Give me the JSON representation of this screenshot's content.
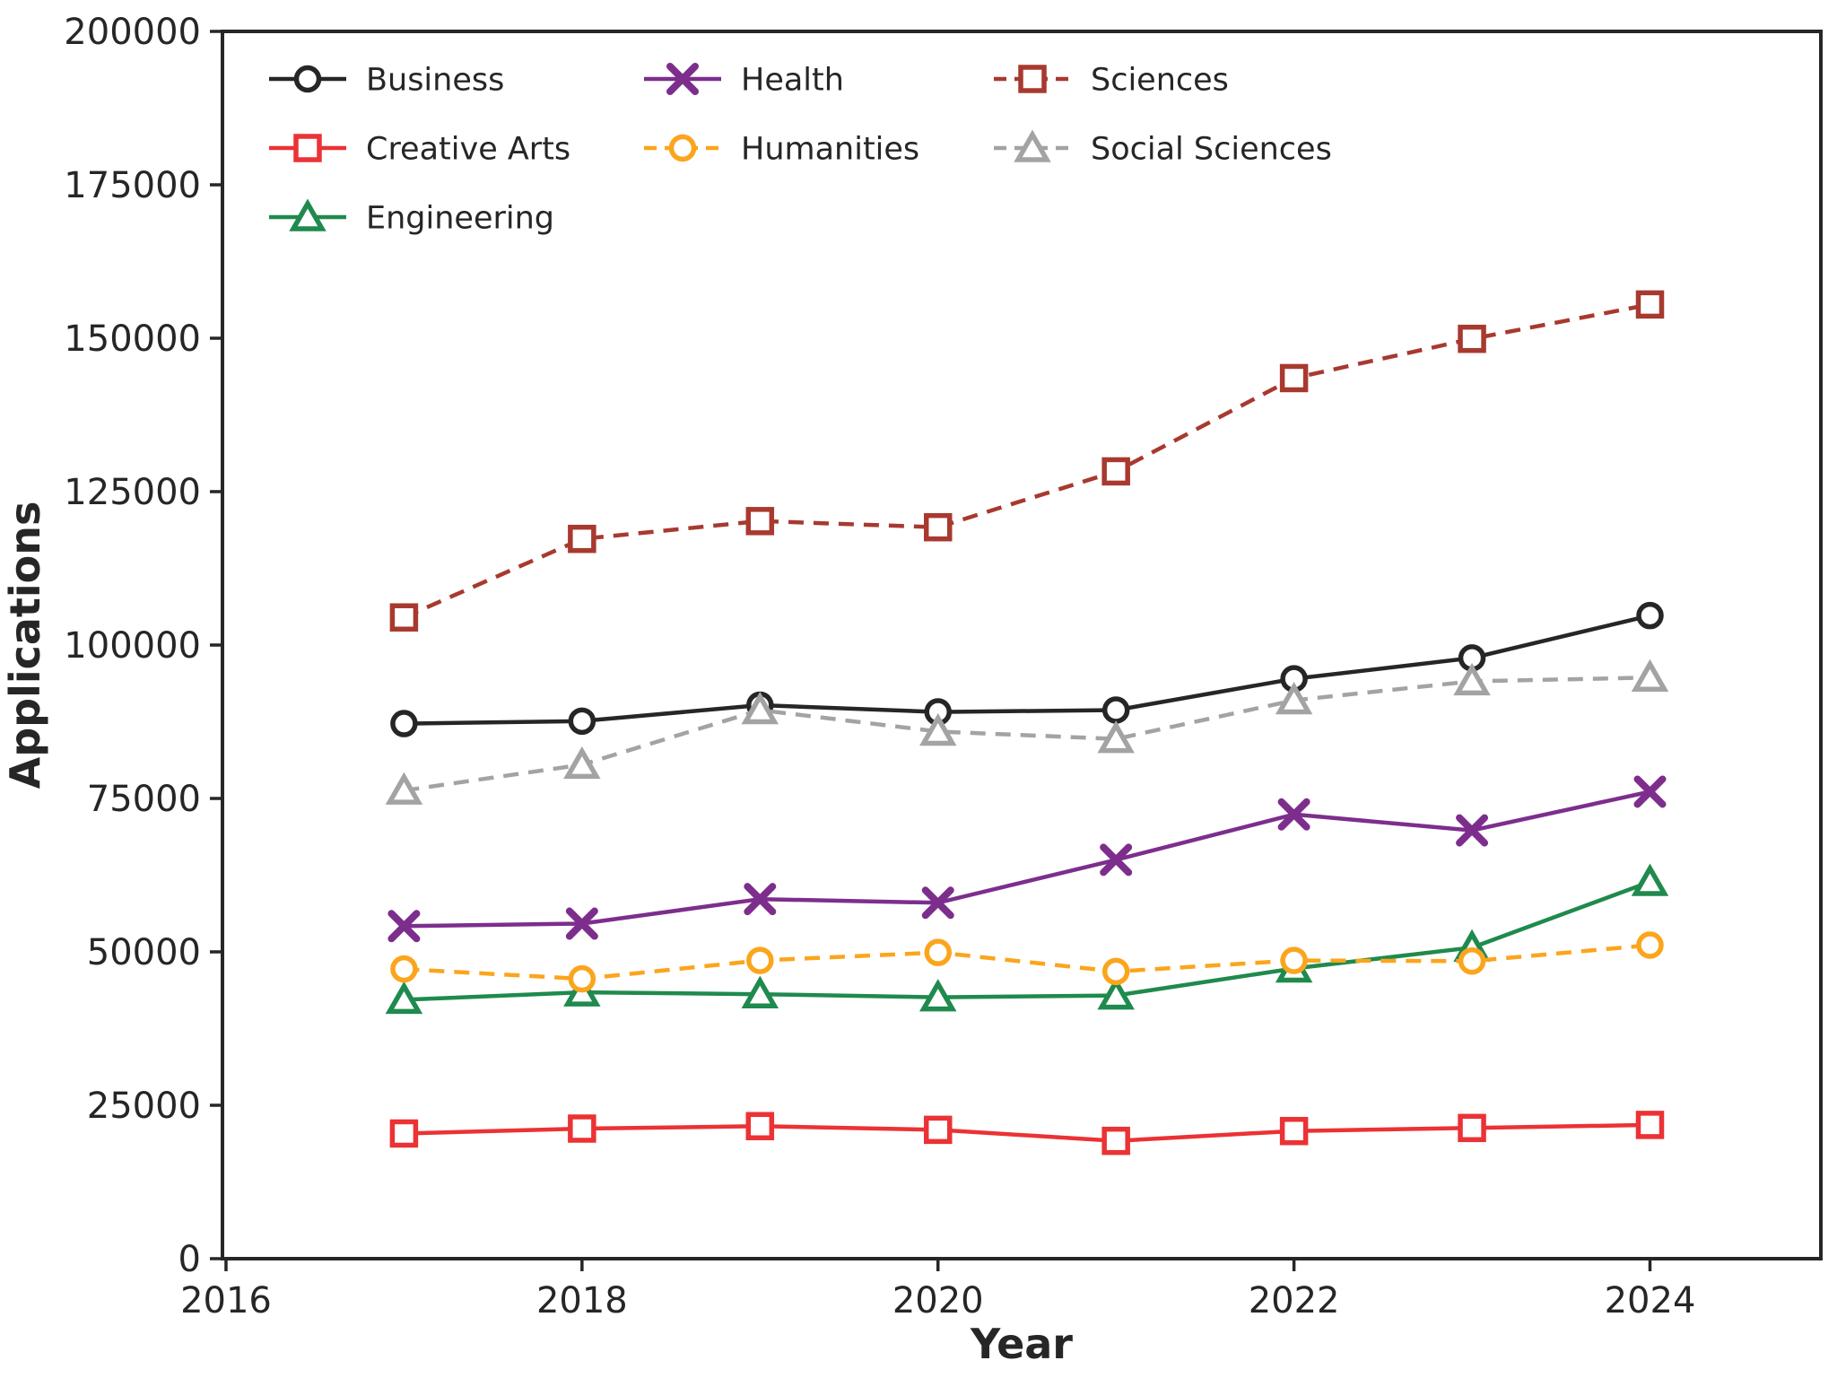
{
  "figure": {
    "background": "#ffffff",
    "axis_color": "#262626"
  },
  "chart_data": {
    "type": "line",
    "title": "",
    "xlabel": "Year",
    "ylabel": "Applications",
    "x": [
      2017,
      2018,
      2019,
      2020,
      2021,
      2022,
      2023,
      2024
    ],
    "xlim": [
      2016,
      2025
    ],
    "ylim": [
      0,
      200000
    ],
    "xticks": [
      2016,
      2018,
      2020,
      2022,
      2024
    ],
    "yticks": [
      0,
      25000,
      50000,
      75000,
      100000,
      125000,
      150000,
      175000,
      200000
    ],
    "grid": false,
    "legend_position": "upper-left-inside",
    "legend_columns": 3,
    "series": [
      {
        "name": "Business",
        "color": "#262626",
        "linestyle": "solid",
        "marker": "circle",
        "values": [
          87200,
          87600,
          90200,
          89100,
          89400,
          94500,
          97900,
          104800
        ]
      },
      {
        "name": "Creative Arts",
        "color": "#EB3234",
        "linestyle": "solid",
        "marker": "square",
        "values": [
          20400,
          21200,
          21600,
          21000,
          19200,
          20800,
          21300,
          21800
        ]
      },
      {
        "name": "Engineering",
        "color": "#1F8A4D",
        "linestyle": "solid",
        "marker": "triangle",
        "values": [
          42200,
          43400,
          43100,
          42600,
          42900,
          47300,
          50700,
          61400
        ]
      },
      {
        "name": "Health",
        "color": "#7D2E8D",
        "linestyle": "solid",
        "marker": "x",
        "values": [
          54200,
          54600,
          58600,
          58000,
          65000,
          72400,
          69800,
          76100
        ]
      },
      {
        "name": "Humanities",
        "color": "#FBA51D",
        "linestyle": "dashed",
        "marker": "circle",
        "values": [
          47200,
          45600,
          48600,
          49900,
          46800,
          48600,
          48500,
          51100
        ]
      },
      {
        "name": "Sciences",
        "color": "#A8392F",
        "linestyle": "dashed",
        "marker": "square",
        "values": [
          104500,
          117300,
          120200,
          119200,
          128300,
          143500,
          149900,
          155500
        ]
      },
      {
        "name": "Social Sciences",
        "color": "#A3A3A3",
        "linestyle": "dashed",
        "marker": "triangle",
        "values": [
          76300,
          80500,
          89400,
          85900,
          84700,
          91000,
          94100,
          94700
        ]
      }
    ]
  }
}
